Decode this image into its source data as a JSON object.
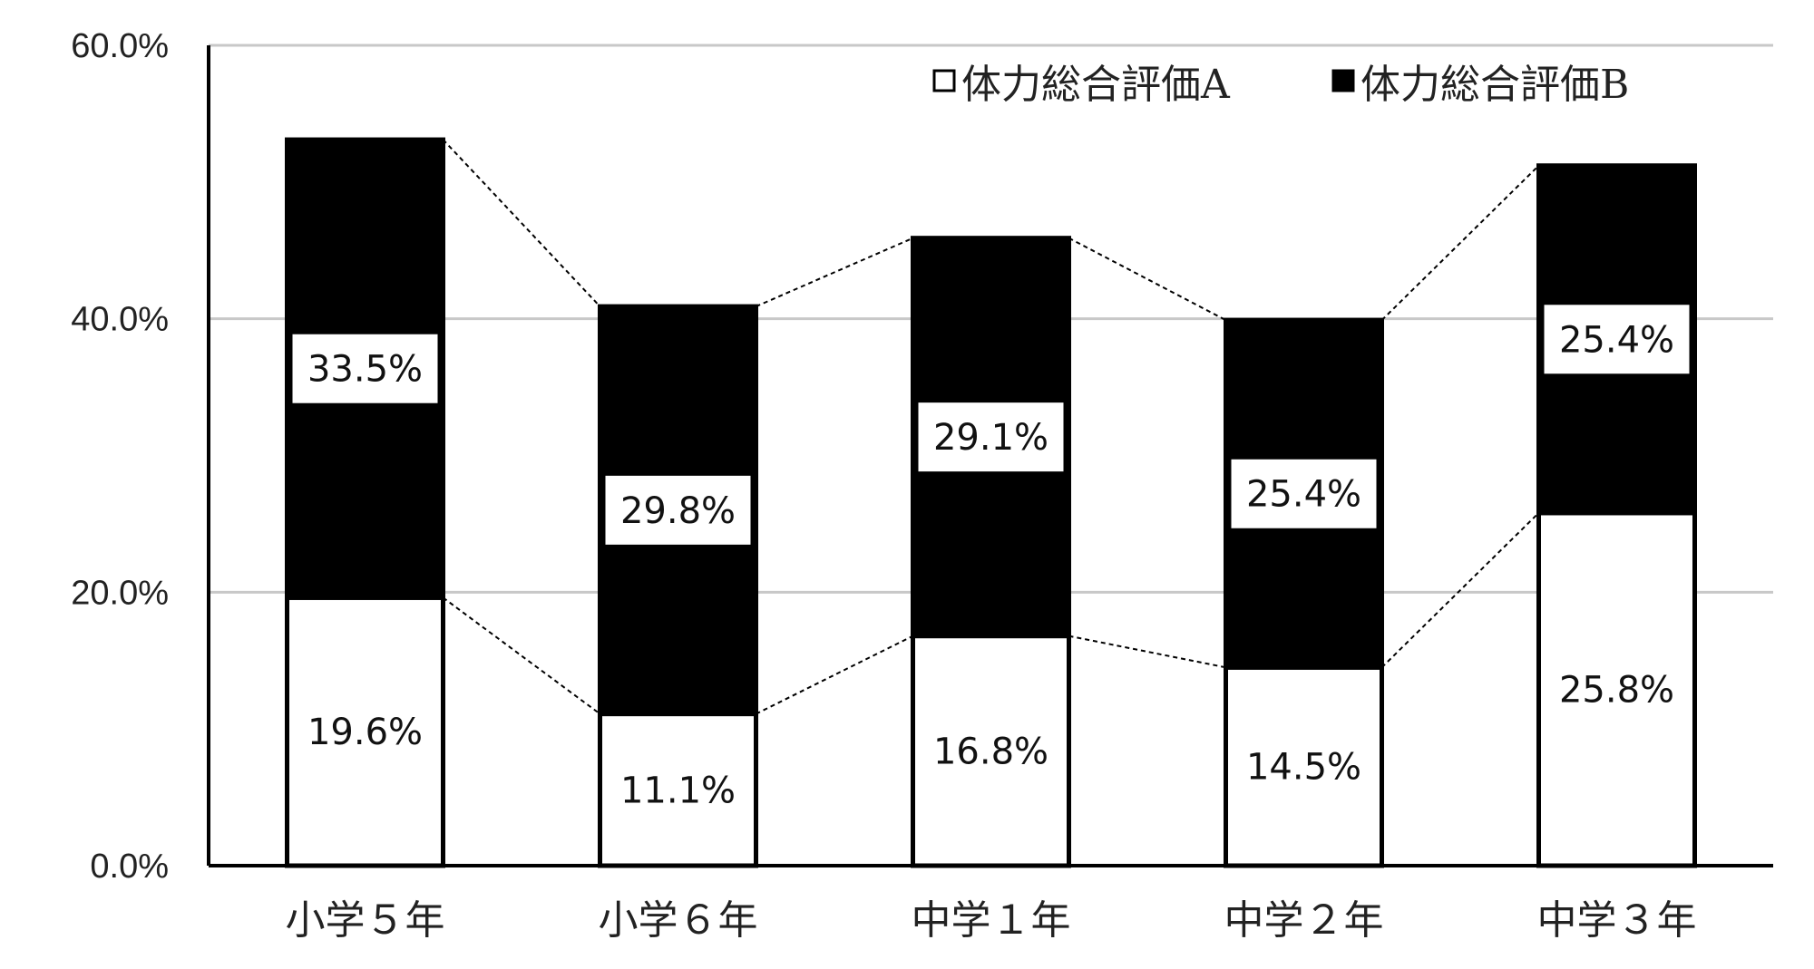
{
  "chart_data": {
    "type": "bar",
    "stacked": true,
    "categories": [
      "小学５年",
      "小学６年",
      "中学１年",
      "中学２年",
      "中学３年"
    ],
    "series": [
      {
        "name": "体力総合評価A",
        "values": [
          19.6,
          11.1,
          16.8,
          14.5,
          25.8
        ],
        "color": "#ffffff"
      },
      {
        "name": "体力総合評価B",
        "values": [
          33.5,
          29.8,
          29.1,
          25.4,
          25.4
        ],
        "color": "#000000"
      }
    ],
    "data_labels_a": [
      "19.6%",
      "11.1%",
      "16.8%",
      "14.5%",
      "25.8%"
    ],
    "data_labels_b": [
      "33.5%",
      "29.8%",
      "29.1%",
      "25.4%",
      "25.4%"
    ],
    "y_ticks": [
      "0.0%",
      "20.0%",
      "40.0%",
      "60.0%"
    ],
    "y_tick_values": [
      0,
      20,
      40,
      60
    ],
    "ylim": [
      0,
      60
    ],
    "grid": true,
    "legend_position": "top-right",
    "series_connectors": "dotted"
  }
}
